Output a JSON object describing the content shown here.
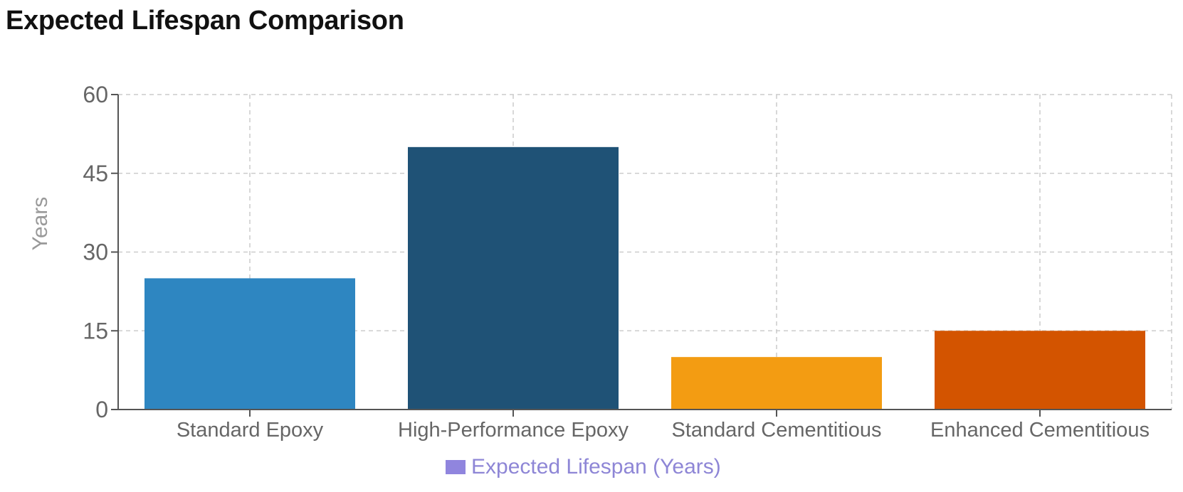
{
  "chart_data": {
    "type": "bar",
    "title": "Expected Lifespan Comparison",
    "categories": [
      "Standard Epoxy",
      "High-Performance Epoxy",
      "Standard Cementitious",
      "Enhanced Cementitious"
    ],
    "series": [
      {
        "name": "Expected Lifespan (Years)",
        "values": [
          25,
          50,
          10,
          15
        ],
        "colors": [
          "#2e86c1",
          "#1f5276",
          "#f39c12",
          "#d35400"
        ]
      }
    ],
    "xlabel": "",
    "ylabel": "Years",
    "ylim": [
      0,
      60
    ],
    "yticks": [
      "0",
      "15",
      "30",
      "45",
      "60"
    ],
    "grid": true,
    "legend_position": "bottom",
    "legend_color": "#9085de"
  }
}
